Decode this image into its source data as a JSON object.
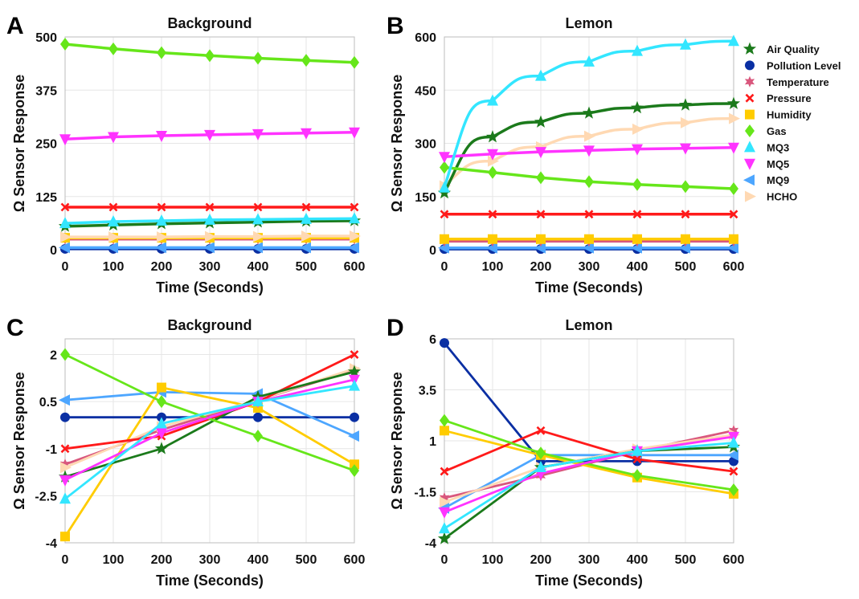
{
  "colors": {
    "Air Quality": "#1b7a1b",
    "Pollution Level": "#0a2fa3",
    "Temperature": "#d9577d",
    "Pressure": "#ff1a1a",
    "Humidity": "#ffcc00",
    "Gas": "#66e61a",
    "MQ3": "#33e6ff",
    "MQ5": "#ff33ff",
    "MQ9": "#4da6ff",
    "HCHO": "#ffd9b3"
  },
  "markers": {
    "Air Quality": "star",
    "Pollution Level": "circle",
    "Temperature": "star6",
    "Pressure": "cross",
    "Humidity": "square",
    "Gas": "diamond",
    "MQ3": "triangle-up",
    "MQ5": "triangle-down",
    "MQ9": "triangle-left",
    "HCHO": "triangle-right"
  },
  "legend": {
    "placement": "right of panel B",
    "entries": [
      "Air Quality",
      "Pollution Level",
      "Temperature",
      "Pressure",
      "Humidity",
      "Gas",
      "MQ3",
      "MQ5",
      "MQ9",
      "HCHO"
    ]
  },
  "chart_data": [
    {
      "panel": "A",
      "type": "line",
      "title": "Background",
      "xlabel": "Time (Seconds)",
      "ylabel": "Ω Sensor Response",
      "xlim": [
        0,
        600
      ],
      "ylim": [
        0,
        500
      ],
      "xticks": [
        0,
        100,
        200,
        300,
        400,
        500,
        600
      ],
      "yticks": [
        0,
        125,
        250,
        375,
        500
      ],
      "grid": true,
      "x": [
        0,
        100,
        200,
        300,
        400,
        500,
        600
      ],
      "series": [
        {
          "name": "Gas",
          "values": [
            483,
            472,
            463,
            456,
            450,
            445,
            440
          ]
        },
        {
          "name": "MQ5",
          "values": [
            260,
            265,
            268,
            270,
            272,
            274,
            276
          ]
        },
        {
          "name": "Pressure",
          "values": [
            100,
            100,
            100,
            100,
            100,
            100,
            100
          ]
        },
        {
          "name": "MQ3",
          "values": [
            62,
            66,
            68,
            70,
            71,
            72,
            73
          ]
        },
        {
          "name": "Air Quality",
          "values": [
            55,
            58,
            61,
            63,
            65,
            67,
            68
          ]
        },
        {
          "name": "HCHO",
          "values": [
            30,
            30,
            30,
            31,
            31,
            32,
            32
          ]
        },
        {
          "name": "Humidity",
          "values": [
            28,
            28,
            28,
            28,
            28,
            28,
            28
          ]
        },
        {
          "name": "Temperature",
          "values": [
            25,
            25,
            25,
            25,
            25,
            25,
            25
          ]
        },
        {
          "name": "MQ9",
          "values": [
            5,
            5,
            5,
            5,
            5,
            5,
            5
          ]
        },
        {
          "name": "Pollution Level",
          "values": [
            2,
            2,
            2,
            2,
            2,
            2,
            2
          ]
        }
      ]
    },
    {
      "panel": "B",
      "type": "line",
      "title": "Lemon",
      "xlabel": "Time (Seconds)",
      "ylabel": "Ω Sensor Response",
      "xlim": [
        0,
        600
      ],
      "ylim": [
        0,
        600
      ],
      "xticks": [
        0,
        100,
        200,
        300,
        400,
        500,
        600
      ],
      "yticks": [
        0,
        150,
        300,
        450,
        600
      ],
      "grid": true,
      "x": [
        0,
        100,
        200,
        300,
        400,
        500,
        600
      ],
      "series": [
        {
          "name": "MQ3",
          "values": [
            175,
            420,
            490,
            530,
            560,
            578,
            588
          ]
        },
        {
          "name": "Air Quality",
          "values": [
            160,
            318,
            360,
            385,
            400,
            408,
            412
          ]
        },
        {
          "name": "HCHO",
          "values": [
            180,
            250,
            290,
            320,
            340,
            358,
            370
          ]
        },
        {
          "name": "MQ5",
          "values": [
            262,
            270,
            276,
            280,
            284,
            286,
            288
          ]
        },
        {
          "name": "Gas",
          "values": [
            232,
            218,
            203,
            192,
            184,
            178,
            172
          ]
        },
        {
          "name": "Pressure",
          "values": [
            100,
            100,
            100,
            100,
            100,
            100,
            100
          ]
        },
        {
          "name": "Humidity",
          "values": [
            30,
            30,
            30,
            30,
            30,
            30,
            30
          ]
        },
        {
          "name": "Temperature",
          "values": [
            24,
            24,
            24,
            24,
            24,
            24,
            24
          ]
        },
        {
          "name": "MQ9",
          "values": [
            5,
            5,
            5,
            5,
            5,
            5,
            5
          ]
        },
        {
          "name": "Pollution Level",
          "values": [
            2,
            2,
            2,
            2,
            2,
            2,
            2
          ]
        }
      ]
    },
    {
      "panel": "C",
      "type": "line",
      "title": "Background",
      "xlabel": "Time (Seconds)",
      "ylabel": "Ω Sensor Response",
      "xlim": [
        0,
        600
      ],
      "ylim": [
        -4,
        2.5
      ],
      "xticks": [
        0,
        100,
        200,
        300,
        400,
        500,
        600
      ],
      "yticks": [
        -4,
        -2.5,
        -1,
        0.5,
        2
      ],
      "ytick_labels": [
        "-4",
        "-2.5",
        "-1",
        "0.5",
        "2"
      ],
      "grid": true,
      "x": [
        0,
        200,
        400,
        600
      ],
      "series": [
        {
          "name": "Gas",
          "values": [
            2.0,
            0.5,
            -0.6,
            -1.7
          ]
        },
        {
          "name": "MQ9",
          "values": [
            0.55,
            0.8,
            0.75,
            -0.6
          ]
        },
        {
          "name": "Pollution Level",
          "values": [
            0.0,
            0.0,
            0.0,
            0.0
          ]
        },
        {
          "name": "Pressure",
          "values": [
            -1.0,
            -0.6,
            0.5,
            2.0
          ]
        },
        {
          "name": "Temperature",
          "values": [
            -1.5,
            -0.4,
            0.55,
            1.5
          ]
        },
        {
          "name": "Air Quality",
          "values": [
            -1.9,
            -1.0,
            0.65,
            1.45
          ]
        },
        {
          "name": "MQ5",
          "values": [
            -2.0,
            -0.5,
            0.5,
            1.2
          ]
        },
        {
          "name": "MQ3",
          "values": [
            -2.6,
            -0.2,
            0.5,
            1.0
          ]
        },
        {
          "name": "Humidity",
          "values": [
            -3.8,
            0.95,
            0.3,
            -1.5
          ]
        },
        {
          "name": "HCHO",
          "values": [
            -1.6,
            -0.3,
            0.55,
            1.55
          ]
        }
      ]
    },
    {
      "panel": "D",
      "type": "line",
      "title": "Lemon",
      "xlabel": "Time (Seconds)",
      "ylabel": "Ω Sensor Response",
      "xlim": [
        0,
        600
      ],
      "ylim": [
        -4,
        6
      ],
      "xticks": [
        0,
        100,
        200,
        300,
        400,
        500,
        600
      ],
      "yticks": [
        -4,
        -1.5,
        1,
        3.5,
        6
      ],
      "ytick_labels": [
        "-4",
        "-1.5",
        "1",
        "3.5",
        "6"
      ],
      "grid": true,
      "x": [
        0,
        200,
        400,
        600
      ],
      "series": [
        {
          "name": "Pollution Level",
          "values": [
            5.8,
            0.0,
            0.0,
            0.0
          ]
        },
        {
          "name": "Gas",
          "values": [
            2.0,
            0.4,
            -0.7,
            -1.4
          ]
        },
        {
          "name": "Humidity",
          "values": [
            1.5,
            0.3,
            -0.8,
            -1.6
          ]
        },
        {
          "name": "Pressure",
          "values": [
            -0.5,
            1.5,
            0.1,
            -0.5
          ]
        },
        {
          "name": "Temperature",
          "values": [
            -1.8,
            -0.7,
            0.5,
            1.5
          ]
        },
        {
          "name": "MQ5",
          "values": [
            -2.5,
            -0.6,
            0.5,
            1.2
          ]
        },
        {
          "name": "MQ9",
          "values": [
            -2.3,
            0.3,
            0.3,
            0.3
          ]
        },
        {
          "name": "MQ3",
          "values": [
            -3.3,
            -0.3,
            0.5,
            0.9
          ]
        },
        {
          "name": "Air Quality",
          "values": [
            -3.8,
            -0.3,
            0.5,
            0.7
          ]
        },
        {
          "name": "HCHO",
          "values": [
            -2.0,
            -0.3,
            0.6,
            1.3
          ]
        }
      ]
    }
  ]
}
